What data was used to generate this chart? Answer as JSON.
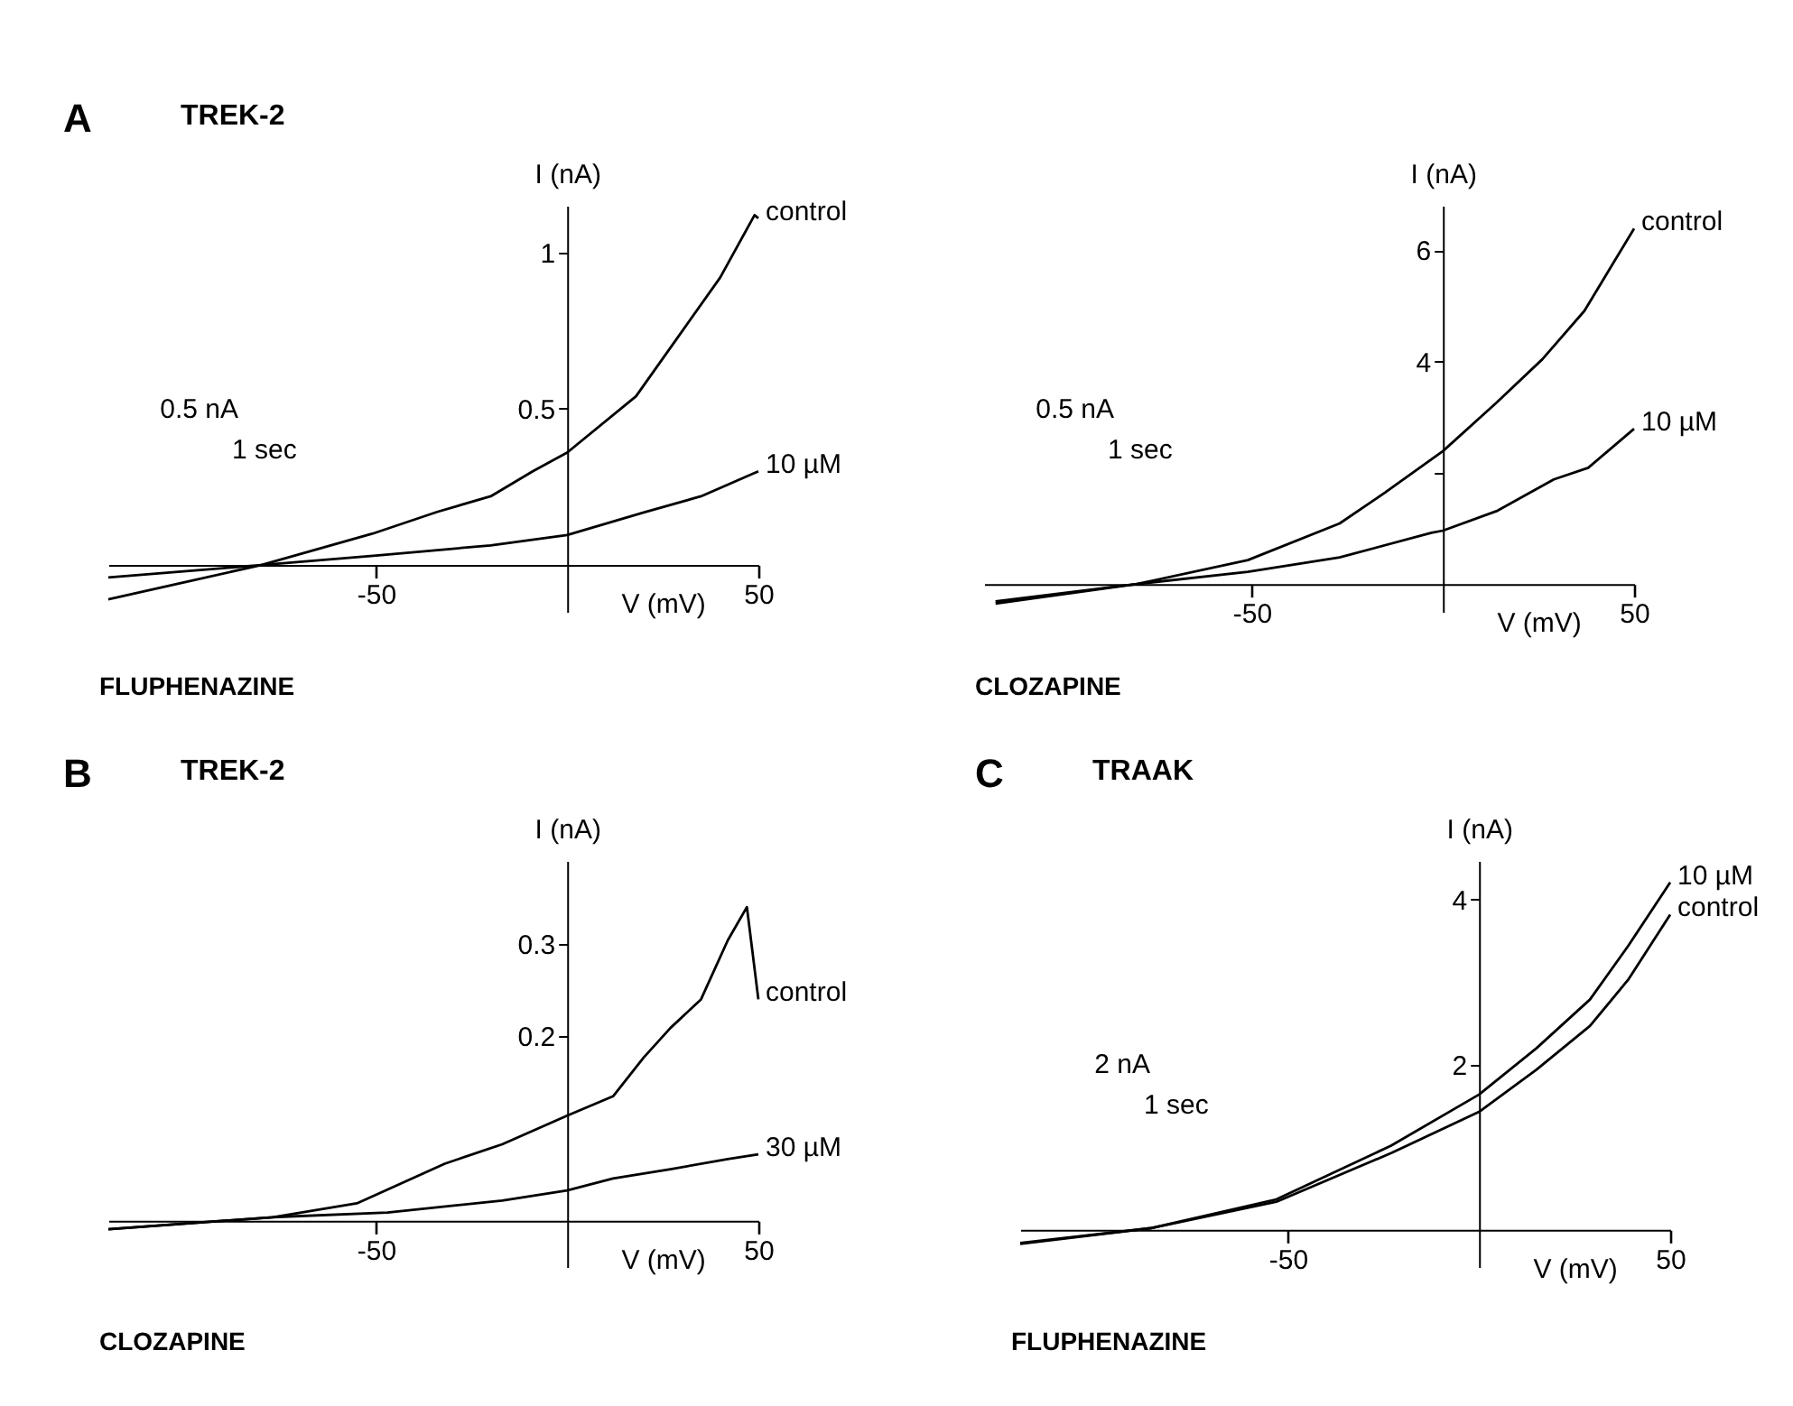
{
  "chart_data": [
    {
      "type": "line",
      "title": "A",
      "subtitle": "TREK-2",
      "xlabel": "V (mV)",
      "ylabel": "I (nA)",
      "xlim": [
        -120,
        50
      ],
      "ylim": [
        -0.15,
        1.15
      ],
      "xticks": [
        -50,
        50
      ],
      "yticks": [
        0.5,
        1
      ],
      "grid": false,
      "annotations": [
        "FLUPHENAZINE",
        "0.5 nA",
        "1 sec"
      ],
      "series": [
        {
          "name": "control",
          "color": "#000000",
          "x": [
            -120,
            -100,
            -80,
            -51,
            -34,
            -20,
            -9,
            0,
            18,
            29,
            40,
            49,
            50
          ],
          "values": [
            -0.11,
            -0.055,
            0,
            0.1,
            0.17,
            0.22,
            0.3,
            0.36,
            0.54,
            0.73,
            0.92,
            1.12,
            1.11
          ]
        },
        {
          "name": "10 µM",
          "color": "#000000",
          "x": [
            -120,
            -80,
            -50,
            -20,
            0,
            20,
            35,
            50
          ],
          "values": [
            -0.04,
            0,
            0.03,
            0.063,
            0.096,
            0.168,
            0.22,
            0.3
          ]
        }
      ]
    },
    {
      "type": "line",
      "xlabel": "V (mV)",
      "ylabel": "I (nA)",
      "xlim": [
        -120,
        50
      ],
      "ylim": [
        -0.5,
        6.8
      ],
      "xticks": [
        -50,
        50
      ],
      "yticks": [
        {
          "value": 2,
          "label": null
        },
        4,
        6
      ],
      "grid": false,
      "annotations": [
        "CLOZAPINE",
        "0.5 nA",
        "1 sec"
      ],
      "series": [
        {
          "name": "control",
          "color": "#000000",
          "x": [
            -117,
            -80,
            -51,
            -27,
            -15,
            0,
            14,
            26,
            37,
            50
          ],
          "values": [
            -0.35,
            0,
            0.43,
            1.09,
            1.65,
            2.39,
            3.26,
            4.04,
            4.91,
            6.39
          ]
        },
        {
          "name": "10 µM",
          "color": "#000000",
          "x": [
            -117,
            -80,
            -51,
            -27,
            -3,
            0,
            14,
            29,
            38,
            50
          ],
          "values": [
            -0.31,
            0,
            0.22,
            0.48,
            0.92,
            0.96,
            1.31,
            1.88,
            2.09,
            2.79
          ]
        }
      ]
    },
    {
      "type": "line",
      "title": "B",
      "subtitle": "TREK-2",
      "xlabel": "V (mV)",
      "ylabel": "I (nA)",
      "xlim": [
        -120,
        50
      ],
      "ylim": [
        -0.05,
        0.39
      ],
      "xticks": [
        -50,
        50
      ],
      "yticks": [
        0.2,
        0.3
      ],
      "grid": false,
      "annotations": [
        "CLOZAPINE"
      ],
      "series": [
        {
          "name": "control",
          "color": "#000000",
          "x": [
            -120,
            -77,
            -55,
            -32,
            -17,
            0,
            12,
            20,
            27,
            35,
            42,
            47,
            50
          ],
          "values": [
            -0.009,
            0.004,
            0.019,
            0.062,
            0.083,
            0.114,
            0.135,
            0.177,
            0.209,
            0.24,
            0.304,
            0.34,
            0.24
          ]
        },
        {
          "name": "30 µM",
          "color": "#000000",
          "x": [
            -120,
            -77,
            -47,
            -17,
            0,
            12,
            27,
            42,
            50
          ],
          "values": [
            -0.009,
            0.004,
            0.009,
            0.022,
            0.033,
            0.046,
            0.056,
            0.067,
            0.072
          ]
        }
      ]
    },
    {
      "type": "line",
      "title": "C",
      "subtitle": "TRAAK",
      "xlabel": "V (mV)",
      "ylabel": "I (nA)",
      "xlim": [
        -120,
        50
      ],
      "ylim": [
        -0.45,
        4.47
      ],
      "xticks": [
        -50,
        50
      ],
      "yticks": [
        2,
        4
      ],
      "grid": false,
      "annotations": [
        "FLUPHENAZINE",
        "2 nA",
        "1 sec"
      ],
      "series": [
        {
          "name": "10 µM",
          "color": "#000000",
          "x": [
            -120,
            -86,
            -53,
            -23,
            0,
            15,
            29,
            39,
            50
          ],
          "values": [
            -0.16,
            0.02,
            0.37,
            1.02,
            1.64,
            2.2,
            2.79,
            3.44,
            4.21
          ]
        },
        {
          "name": "control",
          "color": "#000000",
          "x": [
            -120,
            -86,
            -53,
            -23,
            0,
            15,
            29,
            39,
            50
          ],
          "values": [
            -0.17,
            0.02,
            0.34,
            0.93,
            1.43,
            1.94,
            2.47,
            3.03,
            3.82
          ]
        }
      ]
    }
  ]
}
